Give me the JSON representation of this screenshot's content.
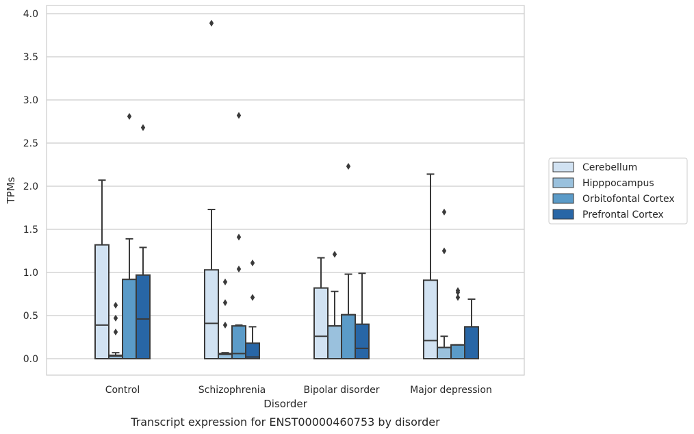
{
  "chart_data": {
    "type": "box",
    "xlabel": "Disorder",
    "ylabel": "TPMs",
    "caption": "Transcript expression for ENST00000460753 by disorder",
    "ylim": [
      -0.19,
      4.1
    ],
    "yticks": [
      0.0,
      0.5,
      1.0,
      1.5,
      2.0,
      2.5,
      3.0,
      3.5,
      4.0
    ],
    "ytick_labels": [
      "0.0",
      "0.5",
      "1.0",
      "1.5",
      "2.0",
      "2.5",
      "3.0",
      "3.5",
      "4.0"
    ],
    "grid": "horizontal",
    "legend_position": "right",
    "categories": [
      "Control",
      "Schizophrenia",
      "Bipolar disorder",
      "Major depression"
    ],
    "series": [
      {
        "name": "Cerebellum",
        "color": "#d1e2f2",
        "boxes": [
          {
            "min": 0.0,
            "q1": 0.0,
            "median": 0.39,
            "q3": 1.32,
            "max": 2.07,
            "outliers": []
          },
          {
            "min": 0.0,
            "q1": 0.0,
            "median": 0.41,
            "q3": 1.03,
            "max": 1.73,
            "outliers": [
              3.89
            ]
          },
          {
            "min": 0.0,
            "q1": 0.0,
            "median": 0.26,
            "q3": 0.82,
            "max": 1.17,
            "outliers": []
          },
          {
            "min": 0.0,
            "q1": 0.0,
            "median": 0.21,
            "q3": 0.91,
            "max": 2.14,
            "outliers": []
          }
        ]
      },
      {
        "name": "Hipppocampus",
        "color": "#9ac1dd",
        "boxes": [
          {
            "min": 0.0,
            "q1": 0.0,
            "median": 0.03,
            "q3": 0.04,
            "max": 0.07,
            "outliers": [
              0.31,
              0.47,
              0.62
            ]
          },
          {
            "min": 0.0,
            "q1": 0.0,
            "median": 0.05,
            "q3": 0.06,
            "max": 0.07,
            "outliers": [
              0.39,
              0.65,
              0.89
            ]
          },
          {
            "min": 0.0,
            "q1": 0.0,
            "median": 0.38,
            "q3": 0.38,
            "max": 0.78,
            "outliers": [
              1.21
            ]
          },
          {
            "min": 0.0,
            "q1": 0.0,
            "median": 0.13,
            "q3": 0.13,
            "max": 0.26,
            "outliers": [
              1.25,
              1.7
            ]
          }
        ]
      },
      {
        "name": "Orbitofontal Cortex",
        "color": "#5b9bc8",
        "boxes": [
          {
            "min": 0.0,
            "q1": 0.0,
            "median": 0.92,
            "q3": 0.92,
            "max": 1.39,
            "outliers": [
              2.81
            ]
          },
          {
            "min": 0.0,
            "q1": 0.0,
            "median": 0.06,
            "q3": 0.38,
            "max": 0.39,
            "outliers": [
              1.04,
              1.41,
              2.82
            ]
          },
          {
            "min": 0.0,
            "q1": 0.0,
            "median": 0.51,
            "q3": 0.51,
            "max": 0.98,
            "outliers": [
              2.23
            ]
          },
          {
            "min": 0.0,
            "q1": 0.0,
            "median": 0.16,
            "q3": 0.16,
            "max": 0.16,
            "outliers": [
              0.71,
              0.77,
              0.79
            ]
          }
        ]
      },
      {
        "name": "Prefrontal Cortex",
        "color": "#2866a6",
        "boxes": [
          {
            "min": 0.0,
            "q1": 0.0,
            "median": 0.46,
            "q3": 0.97,
            "max": 1.29,
            "outliers": [
              2.68
            ]
          },
          {
            "min": 0.0,
            "q1": 0.0,
            "median": 0.02,
            "q3": 0.18,
            "max": 0.37,
            "outliers": [
              0.71,
              1.11
            ]
          },
          {
            "min": 0.0,
            "q1": 0.0,
            "median": 0.12,
            "q3": 0.4,
            "max": 0.99,
            "outliers": []
          },
          {
            "min": 0.0,
            "q1": 0.0,
            "median": 0.37,
            "q3": 0.37,
            "max": 0.69,
            "outliers": []
          }
        ]
      }
    ]
  }
}
